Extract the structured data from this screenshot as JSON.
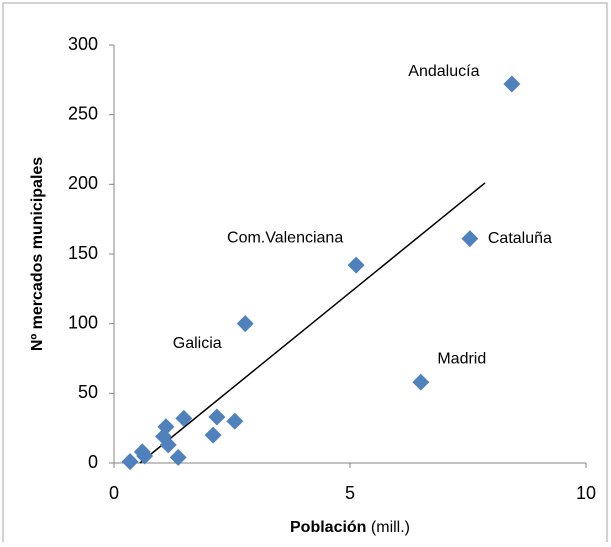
{
  "chart_data": {
    "type": "scatter",
    "x": [
      8.43,
      7.54,
      5.13,
      6.5,
      2.78,
      0.34,
      0.6,
      0.65,
      1.1,
      1.05,
      1.15,
      1.36,
      1.48,
      2.1,
      2.18,
      2.56
    ],
    "values": [
      272,
      161,
      142,
      58,
      100,
      1,
      8,
      5,
      26,
      19,
      13,
      4,
      32,
      20,
      33,
      30
    ],
    "point_labels": [
      "Andalucía",
      "Cataluña",
      "Com.Valenciana",
      "Madrid",
      "Galicia",
      null,
      null,
      null,
      null,
      null,
      null,
      null,
      null,
      null,
      null,
      null
    ],
    "color": "#4f81bd",
    "trendline": {
      "x": [
        0.55,
        7.86
      ],
      "y": [
        0,
        201
      ],
      "color": "#000000"
    },
    "xlim": [
      0,
      10
    ],
    "xticks": [
      0,
      5,
      10
    ],
    "ylim": [
      0,
      300
    ],
    "yticks": [
      0,
      50,
      100,
      150,
      200,
      250,
      300
    ],
    "xlabel": "Población",
    "xlabel_unit": "(mill.)",
    "ylabel": "Nº mercados municipales",
    "grid": false
  }
}
